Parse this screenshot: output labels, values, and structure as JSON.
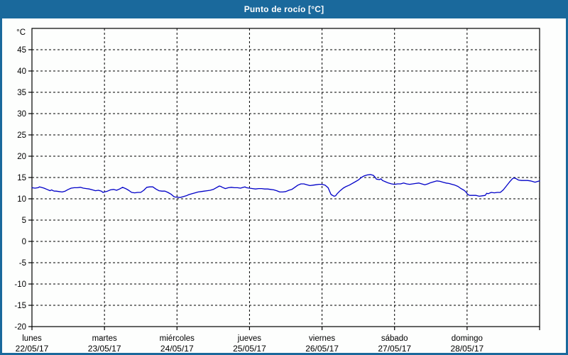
{
  "title": "Punto de rocío [°C]",
  "colors": {
    "frame": "#1A699C",
    "title_text": "#FFFFFF",
    "plot_background": "#FDFEFD",
    "grid": "#000000",
    "axis": "#000000",
    "line": "#0000C8"
  },
  "chart_data": {
    "type": "line",
    "title": "Punto de rocío [°C]",
    "y_unit_label": "°C",
    "ylabel": "",
    "xlabel": "",
    "ylim": [
      -20,
      50
    ],
    "y_ticks": [
      45,
      40,
      35,
      30,
      25,
      20,
      15,
      10,
      5,
      0,
      -5,
      -10,
      -15,
      -20
    ],
    "grid": "dashed",
    "legend_position": "none",
    "x_span_hours": 168,
    "x_days": [
      {
        "name": "lunes",
        "date": "22/05/17"
      },
      {
        "name": "martes",
        "date": "23/05/17"
      },
      {
        "name": "miércoles",
        "date": "24/05/17"
      },
      {
        "name": "jueves",
        "date": "25/05/17"
      },
      {
        "name": "viernes",
        "date": "26/05/17"
      },
      {
        "name": "sábado",
        "date": "27/05/17"
      },
      {
        "name": "domingo",
        "date": "28/05/17"
      }
    ],
    "series": [
      {
        "name": "Punto de rocío",
        "color": "#0000C8",
        "points": [
          [
            0,
            12.6
          ],
          [
            1,
            12.5
          ],
          [
            2,
            12.6
          ],
          [
            2.5,
            12.8
          ],
          [
            3,
            12.7
          ],
          [
            4,
            12.5
          ],
          [
            5,
            12.2
          ],
          [
            6,
            11.9
          ],
          [
            6.5,
            12.1
          ],
          [
            7,
            11.9
          ],
          [
            7.5,
            11.8
          ],
          [
            8,
            11.8
          ],
          [
            9,
            11.7
          ],
          [
            10,
            11.6
          ],
          [
            11,
            11.8
          ],
          [
            12,
            12.2
          ],
          [
            13,
            12.5
          ],
          [
            14,
            12.6
          ],
          [
            15,
            12.6
          ],
          [
            16,
            12.7
          ],
          [
            17,
            12.5
          ],
          [
            18,
            12.4
          ],
          [
            19,
            12.3
          ],
          [
            20,
            12.1
          ],
          [
            21,
            11.9
          ],
          [
            22,
            12.0
          ],
          [
            23,
            11.8
          ],
          [
            23.5,
            11.5
          ],
          [
            24,
            11.6
          ],
          [
            25,
            11.8
          ],
          [
            26,
            12.1
          ],
          [
            27,
            12.2
          ],
          [
            28,
            12.0
          ],
          [
            29,
            12.3
          ],
          [
            30,
            12.7
          ],
          [
            31,
            12.4
          ],
          [
            32,
            12.0
          ],
          [
            33,
            11.5
          ],
          [
            34,
            11.4
          ],
          [
            35,
            11.5
          ],
          [
            36,
            11.5
          ],
          [
            37,
            12.0
          ],
          [
            38,
            12.7
          ],
          [
            39,
            12.8
          ],
          [
            40,
            12.8
          ],
          [
            41,
            12.3
          ],
          [
            42,
            11.9
          ],
          [
            43,
            11.8
          ],
          [
            44,
            11.8
          ],
          [
            45,
            11.5
          ],
          [
            46,
            11.1
          ],
          [
            47,
            10.5
          ],
          [
            47.5,
            10.4
          ],
          [
            48,
            10.4
          ],
          [
            49,
            10.3
          ],
          [
            50,
            10.5
          ],
          [
            51,
            10.7
          ],
          [
            52,
            11.0
          ],
          [
            53,
            11.2
          ],
          [
            54,
            11.4
          ],
          [
            55,
            11.6
          ],
          [
            56,
            11.7
          ],
          [
            57,
            11.8
          ],
          [
            58,
            11.9
          ],
          [
            59,
            12.0
          ],
          [
            60,
            12.2
          ],
          [
            61,
            12.6
          ],
          [
            62,
            13.0
          ],
          [
            62.5,
            12.9
          ],
          [
            63,
            12.7
          ],
          [
            64,
            12.4
          ],
          [
            65,
            12.6
          ],
          [
            66,
            12.7
          ],
          [
            67,
            12.6
          ],
          [
            68,
            12.6
          ],
          [
            69,
            12.5
          ],
          [
            70,
            12.7
          ],
          [
            70.5,
            12.8
          ],
          [
            71,
            12.6
          ],
          [
            72,
            12.5
          ],
          [
            73,
            12.4
          ],
          [
            74,
            12.3
          ],
          [
            75,
            12.4
          ],
          [
            76,
            12.4
          ],
          [
            77,
            12.3
          ],
          [
            78,
            12.3
          ],
          [
            79,
            12.2
          ],
          [
            80,
            12.1
          ],
          [
            81,
            11.9
          ],
          [
            82,
            11.6
          ],
          [
            83,
            11.6
          ],
          [
            84,
            11.7
          ],
          [
            85,
            12.0
          ],
          [
            86,
            12.2
          ],
          [
            87,
            12.7
          ],
          [
            88,
            13.2
          ],
          [
            89,
            13.5
          ],
          [
            90,
            13.5
          ],
          [
            91,
            13.3
          ],
          [
            92,
            13.1
          ],
          [
            93,
            13.2
          ],
          [
            94,
            13.3
          ],
          [
            95,
            13.4
          ],
          [
            96,
            13.4
          ],
          [
            97,
            13.2
          ],
          [
            98,
            12.6
          ],
          [
            98.5,
            11.8
          ],
          [
            99,
            11.0
          ],
          [
            100,
            10.6
          ],
          [
            100.5,
            10.7
          ],
          [
            101,
            11.2
          ],
          [
            102,
            11.9
          ],
          [
            103,
            12.5
          ],
          [
            104,
            12.9
          ],
          [
            105,
            13.2
          ],
          [
            106,
            13.6
          ],
          [
            107,
            14.0
          ],
          [
            108,
            14.4
          ],
          [
            109,
            15.0
          ],
          [
            110,
            15.4
          ],
          [
            111,
            15.6
          ],
          [
            112,
            15.7
          ],
          [
            113,
            15.5
          ],
          [
            113.5,
            15.1
          ],
          [
            114,
            14.6
          ],
          [
            115,
            14.5
          ],
          [
            115.5,
            14.7
          ],
          [
            116,
            14.3
          ],
          [
            117,
            14.0
          ],
          [
            118,
            13.7
          ],
          [
            119,
            13.5
          ],
          [
            120,
            13.4
          ],
          [
            121,
            13.5
          ],
          [
            122,
            13.5
          ],
          [
            123,
            13.7
          ],
          [
            124,
            13.5
          ],
          [
            125,
            13.4
          ],
          [
            126,
            13.5
          ],
          [
            127,
            13.6
          ],
          [
            128,
            13.7
          ],
          [
            129,
            13.5
          ],
          [
            130,
            13.3
          ],
          [
            131,
            13.5
          ],
          [
            132,
            13.8
          ],
          [
            133,
            14.0
          ],
          [
            134,
            14.2
          ],
          [
            135,
            14.1
          ],
          [
            136,
            13.9
          ],
          [
            137,
            13.7
          ],
          [
            138,
            13.6
          ],
          [
            139,
            13.4
          ],
          [
            140,
            13.2
          ],
          [
            141,
            12.9
          ],
          [
            142,
            12.4
          ],
          [
            143,
            12.0
          ],
          [
            143.5,
            11.7
          ],
          [
            144,
            11.2
          ],
          [
            144.5,
            10.9
          ],
          [
            145,
            10.8
          ],
          [
            146,
            10.8
          ],
          [
            147,
            10.8
          ],
          [
            148,
            10.6
          ],
          [
            149,
            10.7
          ],
          [
            150,
            10.8
          ],
          [
            150.5,
            11.3
          ],
          [
            151,
            11.2
          ],
          [
            152,
            11.5
          ],
          [
            153,
            11.4
          ],
          [
            154,
            11.5
          ],
          [
            155,
            11.5
          ],
          [
            156,
            12.1
          ],
          [
            157,
            13.0
          ],
          [
            158,
            13.9
          ],
          [
            159,
            14.7
          ],
          [
            159.5,
            14.9
          ],
          [
            160,
            14.8
          ],
          [
            161,
            14.4
          ],
          [
            162,
            14.3
          ],
          [
            163,
            14.3
          ],
          [
            164,
            14.3
          ],
          [
            165,
            14.2
          ],
          [
            166,
            14.0
          ],
          [
            166.5,
            13.9
          ],
          [
            167,
            14.0
          ],
          [
            168,
            14.2
          ]
        ]
      }
    ]
  }
}
